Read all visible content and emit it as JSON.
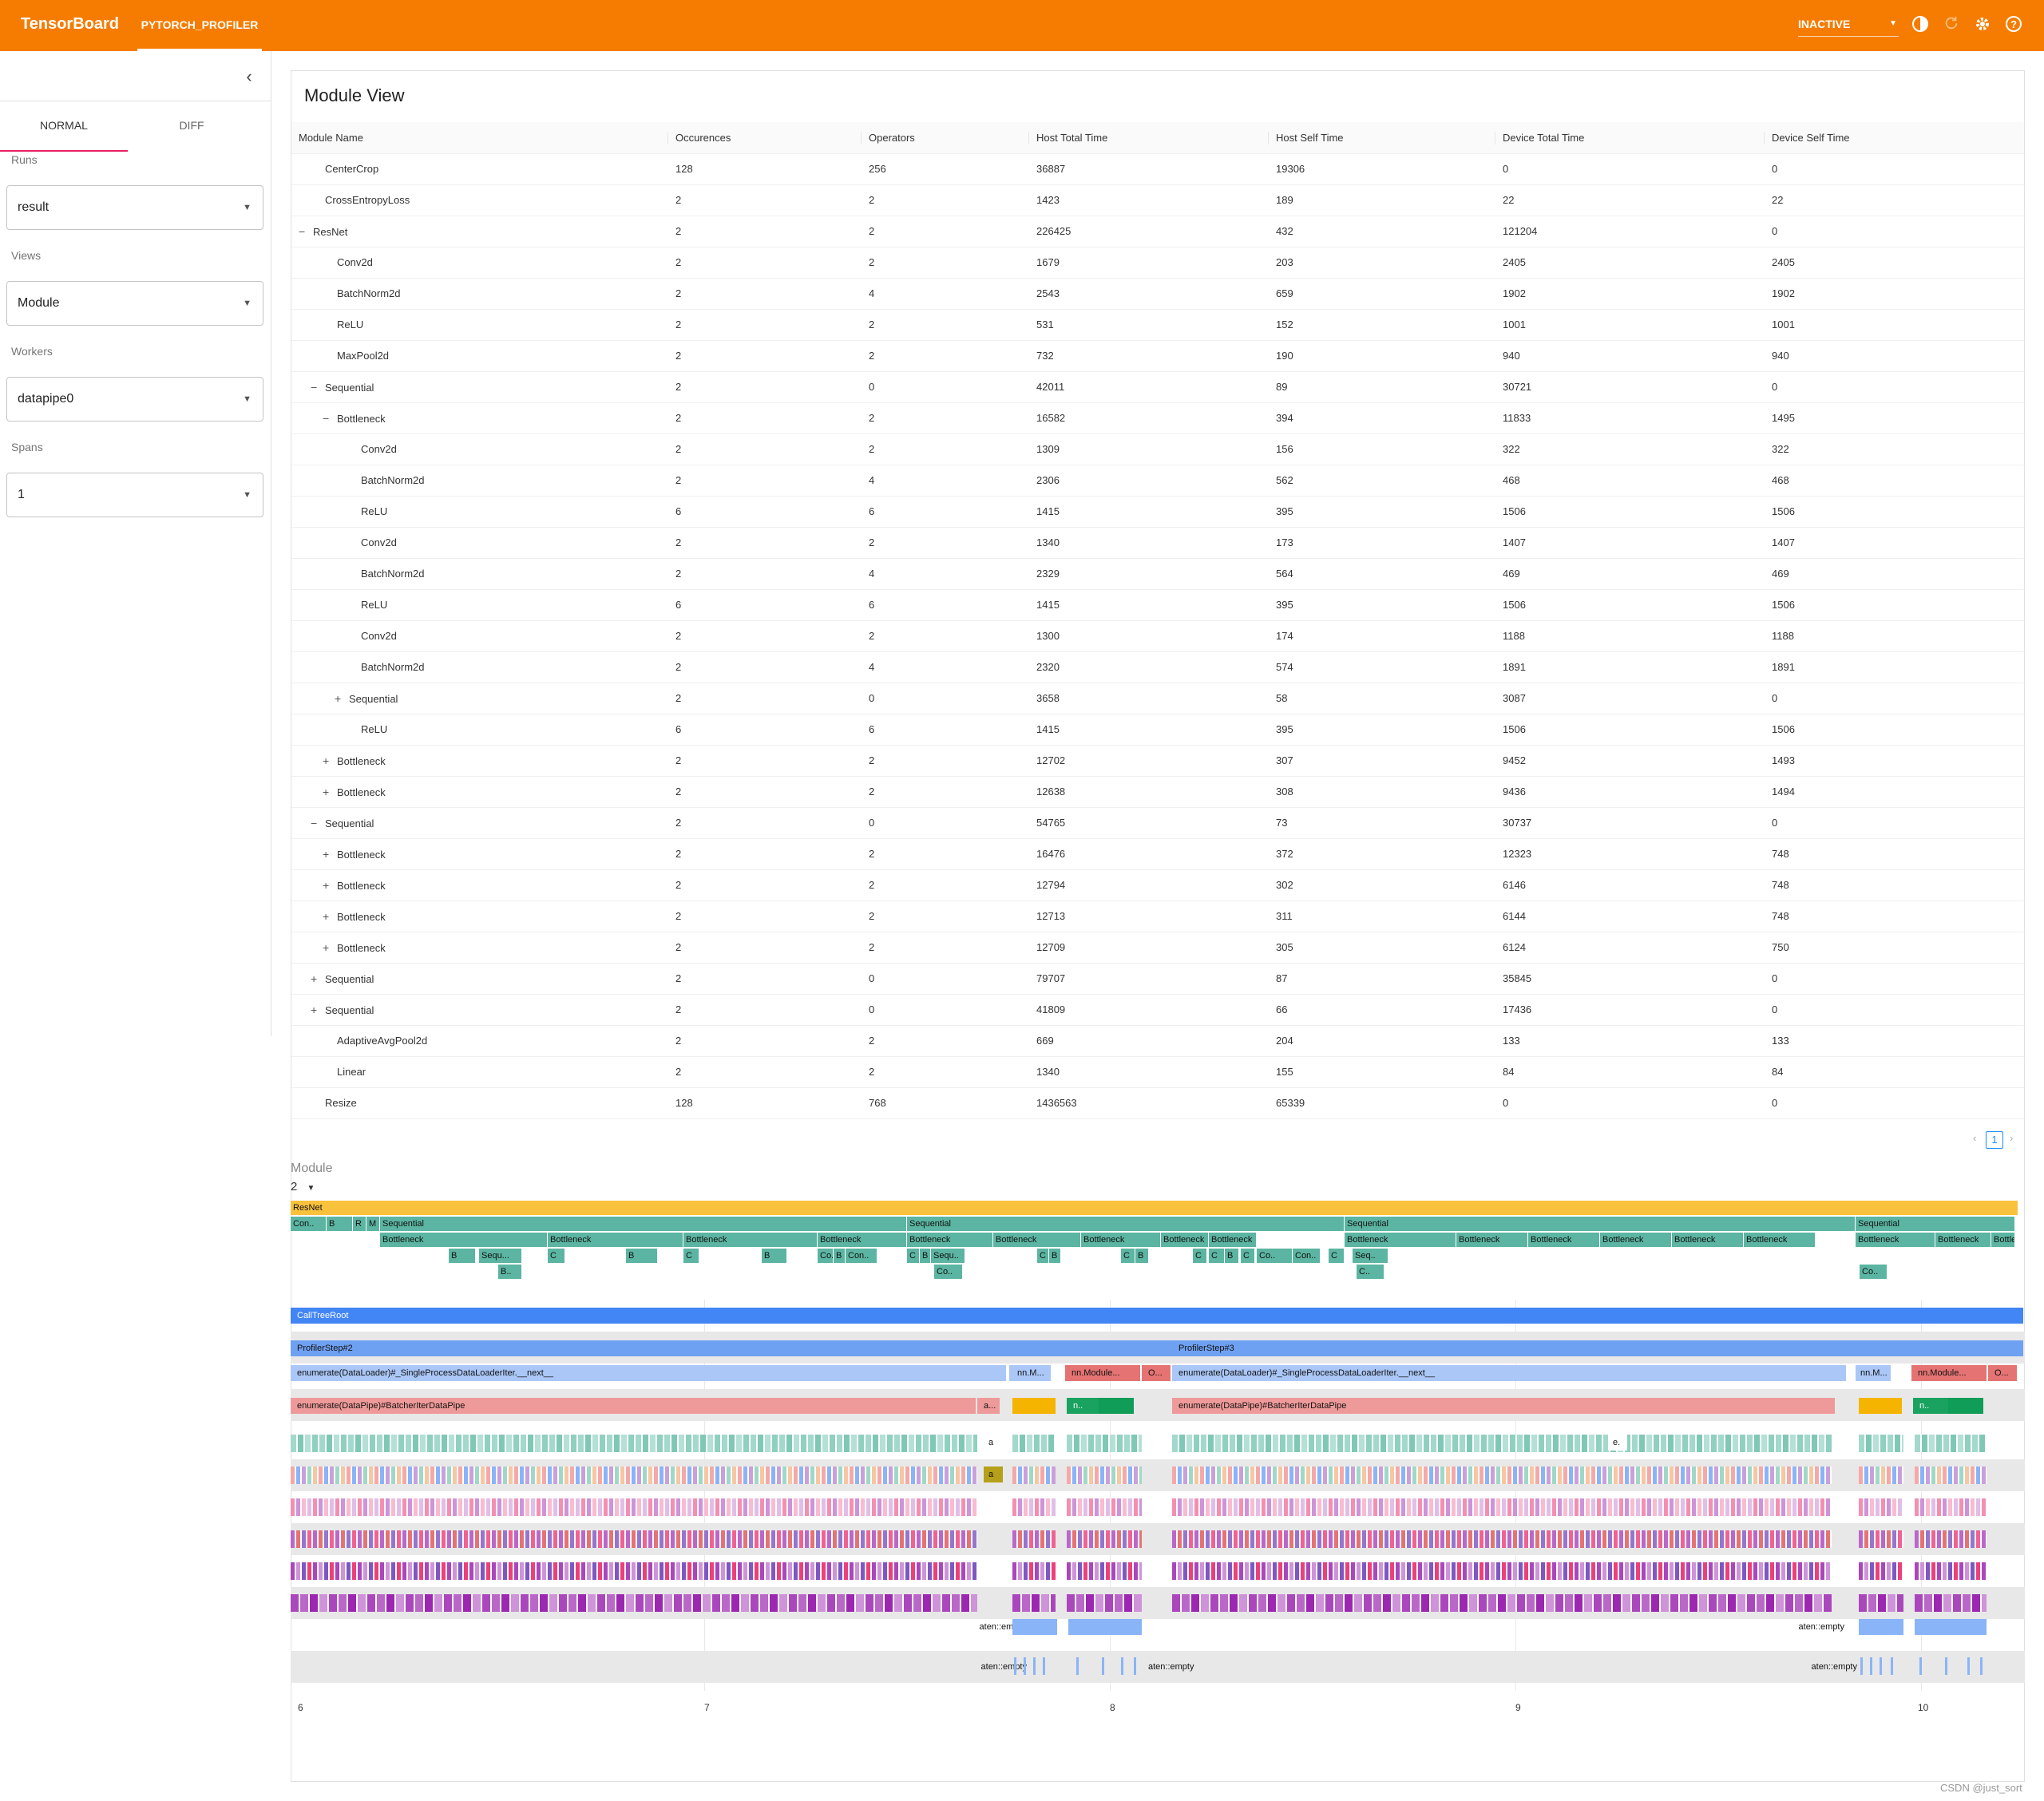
{
  "header": {
    "brand": "TensorBoard",
    "plugin_tab": "PYTORCH_PROFILER",
    "status_select": "INACTIVE"
  },
  "sidebar": {
    "tabs": [
      "NORMAL",
      "DIFF"
    ],
    "runs_label": "Runs",
    "runs_value": "result",
    "views_label": "Views",
    "views_value": "Module",
    "workers_label": "Workers",
    "workers_value": "datapipe0",
    "spans_label": "Spans",
    "spans_value": "1"
  },
  "module_view": {
    "title": "Module View",
    "columns": [
      "Module Name",
      "Occurences",
      "Operators",
      "Host Total Time",
      "Host Self Time",
      "Device Total Time",
      "Device Self Time"
    ],
    "rows": [
      {
        "level": 1,
        "toggle": "",
        "name": "CenterCrop",
        "vals": [
          "128",
          "256",
          "36887",
          "19306",
          "0",
          "0"
        ]
      },
      {
        "level": 1,
        "toggle": "",
        "name": "CrossEntropyLoss",
        "vals": [
          "2",
          "2",
          "1423",
          "189",
          "22",
          "22"
        ]
      },
      {
        "level": 0,
        "toggle": "−",
        "name": "ResNet",
        "vals": [
          "2",
          "2",
          "226425",
          "432",
          "121204",
          "0"
        ]
      },
      {
        "level": 2,
        "toggle": "",
        "name": "Conv2d",
        "vals": [
          "2",
          "2",
          "1679",
          "203",
          "2405",
          "2405"
        ]
      },
      {
        "level": 2,
        "toggle": "",
        "name": "BatchNorm2d",
        "vals": [
          "2",
          "4",
          "2543",
          "659",
          "1902",
          "1902"
        ]
      },
      {
        "level": 2,
        "toggle": "",
        "name": "ReLU",
        "vals": [
          "2",
          "2",
          "531",
          "152",
          "1001",
          "1001"
        ]
      },
      {
        "level": 2,
        "toggle": "",
        "name": "MaxPool2d",
        "vals": [
          "2",
          "2",
          "732",
          "190",
          "940",
          "940"
        ]
      },
      {
        "level": 1,
        "toggle": "−",
        "name": "Sequential",
        "vals": [
          "2",
          "0",
          "42011",
          "89",
          "30721",
          "0"
        ]
      },
      {
        "level": 2,
        "toggle": "−",
        "name": "Bottleneck",
        "vals": [
          "2",
          "2",
          "16582",
          "394",
          "11833",
          "1495"
        ]
      },
      {
        "level": 4,
        "toggle": "",
        "name": "Conv2d",
        "vals": [
          "2",
          "2",
          "1309",
          "156",
          "322",
          "322"
        ]
      },
      {
        "level": 4,
        "toggle": "",
        "name": "BatchNorm2d",
        "vals": [
          "2",
          "4",
          "2306",
          "562",
          "468",
          "468"
        ]
      },
      {
        "level": 4,
        "toggle": "",
        "name": "ReLU",
        "vals": [
          "6",
          "6",
          "1415",
          "395",
          "1506",
          "1506"
        ]
      },
      {
        "level": 4,
        "toggle": "",
        "name": "Conv2d",
        "vals": [
          "2",
          "2",
          "1340",
          "173",
          "1407",
          "1407"
        ]
      },
      {
        "level": 4,
        "toggle": "",
        "name": "BatchNorm2d",
        "vals": [
          "2",
          "4",
          "2329",
          "564",
          "469",
          "469"
        ]
      },
      {
        "level": 4,
        "toggle": "",
        "name": "ReLU",
        "vals": [
          "6",
          "6",
          "1415",
          "395",
          "1506",
          "1506"
        ]
      },
      {
        "level": 4,
        "toggle": "",
        "name": "Conv2d",
        "vals": [
          "2",
          "2",
          "1300",
          "174",
          "1188",
          "1188"
        ]
      },
      {
        "level": 4,
        "toggle": "",
        "name": "BatchNorm2d",
        "vals": [
          "2",
          "4",
          "2320",
          "574",
          "1891",
          "1891"
        ]
      },
      {
        "level": 3,
        "toggle": "+",
        "name": "Sequential",
        "vals": [
          "2",
          "0",
          "3658",
          "58",
          "3087",
          "0"
        ]
      },
      {
        "level": 4,
        "toggle": "",
        "name": "ReLU",
        "vals": [
          "6",
          "6",
          "1415",
          "395",
          "1506",
          "1506"
        ]
      },
      {
        "level": 2,
        "toggle": "+",
        "name": "Bottleneck",
        "vals": [
          "2",
          "2",
          "12702",
          "307",
          "9452",
          "1493"
        ]
      },
      {
        "level": 2,
        "toggle": "+",
        "name": "Bottleneck",
        "vals": [
          "2",
          "2",
          "12638",
          "308",
          "9436",
          "1494"
        ]
      },
      {
        "level": 1,
        "toggle": "−",
        "name": "Sequential",
        "vals": [
          "2",
          "0",
          "54765",
          "73",
          "30737",
          "0"
        ]
      },
      {
        "level": 2,
        "toggle": "+",
        "name": "Bottleneck",
        "vals": [
          "2",
          "2",
          "16476",
          "372",
          "12323",
          "748"
        ]
      },
      {
        "level": 2,
        "toggle": "+",
        "name": "Bottleneck",
        "vals": [
          "2",
          "2",
          "12794",
          "302",
          "6146",
          "748"
        ]
      },
      {
        "level": 2,
        "toggle": "+",
        "name": "Bottleneck",
        "vals": [
          "2",
          "2",
          "12713",
          "311",
          "6144",
          "748"
        ]
      },
      {
        "level": 2,
        "toggle": "+",
        "name": "Bottleneck",
        "vals": [
          "2",
          "2",
          "12709",
          "305",
          "6124",
          "750"
        ]
      },
      {
        "level": 1,
        "toggle": "+",
        "name": "Sequential",
        "vals": [
          "2",
          "0",
          "79707",
          "87",
          "35845",
          "0"
        ]
      },
      {
        "level": 1,
        "toggle": "+",
        "name": "Sequential",
        "vals": [
          "2",
          "0",
          "41809",
          "66",
          "17436",
          "0"
        ]
      },
      {
        "level": 2,
        "toggle": "",
        "name": "AdaptiveAvgPool2d",
        "vals": [
          "2",
          "2",
          "669",
          "204",
          "133",
          "133"
        ]
      },
      {
        "level": 2,
        "toggle": "",
        "name": "Linear",
        "vals": [
          "2",
          "2",
          "1340",
          "155",
          "84",
          "84"
        ]
      },
      {
        "level": 1,
        "toggle": "",
        "name": "Resize",
        "vals": [
          "128",
          "768",
          "1436563",
          "65339",
          "0",
          "0"
        ]
      }
    ],
    "page": "1"
  },
  "module_timeline": {
    "label": "Module",
    "select_value": "2",
    "colors": {
      "resnet": "#f9c23c",
      "module": "#5bb5a2"
    },
    "root": "ResNet",
    "level1": [
      {
        "t": "Con..",
        "s": 0,
        "e": 45
      },
      {
        "t": "B",
        "s": 45,
        "e": 78
      },
      {
        "t": "R",
        "s": 78,
        "e": 95
      },
      {
        "t": "M",
        "s": 95,
        "e": 112
      },
      {
        "t": "Sequential",
        "s": 112,
        "e": 772
      },
      {
        "t": "Sequential",
        "s": 772,
        "e": 1320
      },
      {
        "t": "Sequential",
        "s": 1320,
        "e": 1960
      },
      {
        "t": "Sequential",
        "s": 1960,
        "e": 2160
      }
    ],
    "level2": [
      {
        "t": "Bottleneck",
        "s": 112,
        "e": 322
      },
      {
        "t": "Bottleneck",
        "s": 322,
        "e": 492
      },
      {
        "t": "Bottleneck",
        "s": 492,
        "e": 660
      },
      {
        "t": "Bottleneck",
        "s": 660,
        "e": 772
      },
      {
        "t": "Bottleneck",
        "s": 772,
        "e": 880
      },
      {
        "t": "Bottleneck",
        "s": 880,
        "e": 990
      },
      {
        "t": "Bottleneck",
        "s": 990,
        "e": 1090
      },
      {
        "t": "Bottleneck",
        "s": 1090,
        "e": 1150
      },
      {
        "t": "Bottleneck",
        "s": 1150,
        "e": 1210
      },
      {
        "t": "Bottleneck",
        "s": 1320,
        "e": 1460
      },
      {
        "t": "Bottleneck",
        "s": 1460,
        "e": 1550
      },
      {
        "t": "Bottleneck",
        "s": 1550,
        "e": 1640
      },
      {
        "t": "Bottleneck",
        "s": 1640,
        "e": 1730
      },
      {
        "t": "Bottleneck",
        "s": 1730,
        "e": 1820
      },
      {
        "t": "Bottleneck",
        "s": 1820,
        "e": 1910
      },
      {
        "t": "Bottleneck",
        "s": 1960,
        "e": 2060
      },
      {
        "t": "Bottleneck",
        "s": 2060,
        "e": 2130
      },
      {
        "t": "Bottleneck",
        "s": 2130,
        "e": 2160
      }
    ],
    "level3": [
      {
        "t": "B",
        "s": 198,
        "e": 232
      },
      {
        "t": "Sequ...",
        "s": 236,
        "e": 290
      },
      {
        "t": "C",
        "s": 322,
        "e": 344
      },
      {
        "t": "B",
        "s": 420,
        "e": 460
      },
      {
        "t": "C",
        "s": 492,
        "e": 512
      },
      {
        "t": "B",
        "s": 590,
        "e": 622
      },
      {
        "t": "Co..",
        "s": 660,
        "e": 680
      },
      {
        "t": "B",
        "s": 680,
        "e": 695
      },
      {
        "t": "Con..",
        "s": 695,
        "e": 735
      },
      {
        "t": "C",
        "s": 772,
        "e": 788
      },
      {
        "t": "B",
        "s": 788,
        "e": 802
      },
      {
        "t": "Sequ..",
        "s": 802,
        "e": 845
      },
      {
        "t": "C",
        "s": 935,
        "e": 950
      },
      {
        "t": "B",
        "s": 950,
        "e": 965
      },
      {
        "t": "C",
        "s": 1040,
        "e": 1058
      },
      {
        "t": "B",
        "s": 1058,
        "e": 1075
      },
      {
        "t": "C",
        "s": 1130,
        "e": 1148
      },
      {
        "t": "C",
        "s": 1150,
        "e": 1170
      },
      {
        "t": "B",
        "s": 1170,
        "e": 1188
      },
      {
        "t": "C",
        "s": 1190,
        "e": 1208
      },
      {
        "t": "Co..",
        "s": 1210,
        "e": 1255
      },
      {
        "t": "Con..",
        "s": 1255,
        "e": 1290
      },
      {
        "t": "C",
        "s": 1300,
        "e": 1320
      },
      {
        "t": "Seq..",
        "s": 1330,
        "e": 1375
      }
    ],
    "level4": [
      {
        "t": "B..",
        "s": 260,
        "e": 290
      },
      {
        "t": "Co..",
        "s": 806,
        "e": 842
      },
      {
        "t": "C..",
        "s": 1335,
        "e": 1370
      },
      {
        "t": "Co..",
        "s": 1965,
        "e": 2000
      }
    ]
  },
  "trace": {
    "call_tree_root": "CallTreeRoot",
    "steps": [
      "ProfilerStep#2",
      "ProfilerStep#3"
    ],
    "enumerate_dataloader": "enumerate(DataLoader)#_SingleProcessDataLoaderIter.__next__",
    "enumerate_datapipe": "enumerate(DataPipe)#BatcherIterDataPipe",
    "nn_module_short": "nn.M...",
    "nn_module_box": "nn.Module...",
    "o_short": "O...",
    "a_short": "a...",
    "n_short": "n..",
    "a_label": "a",
    "e_label": "e.",
    "aten_empty": "aten::empty",
    "colors": {
      "root": "#4285f4",
      "step": "#6fa1f2",
      "dataloader": "#aac7f7",
      "nnmodule": "#e57373",
      "datapipe": "#ef9a9a"
    },
    "ticks": [
      "6",
      "7",
      "8",
      "9",
      "10"
    ]
  },
  "watermark": "CSDN @just_sort"
}
